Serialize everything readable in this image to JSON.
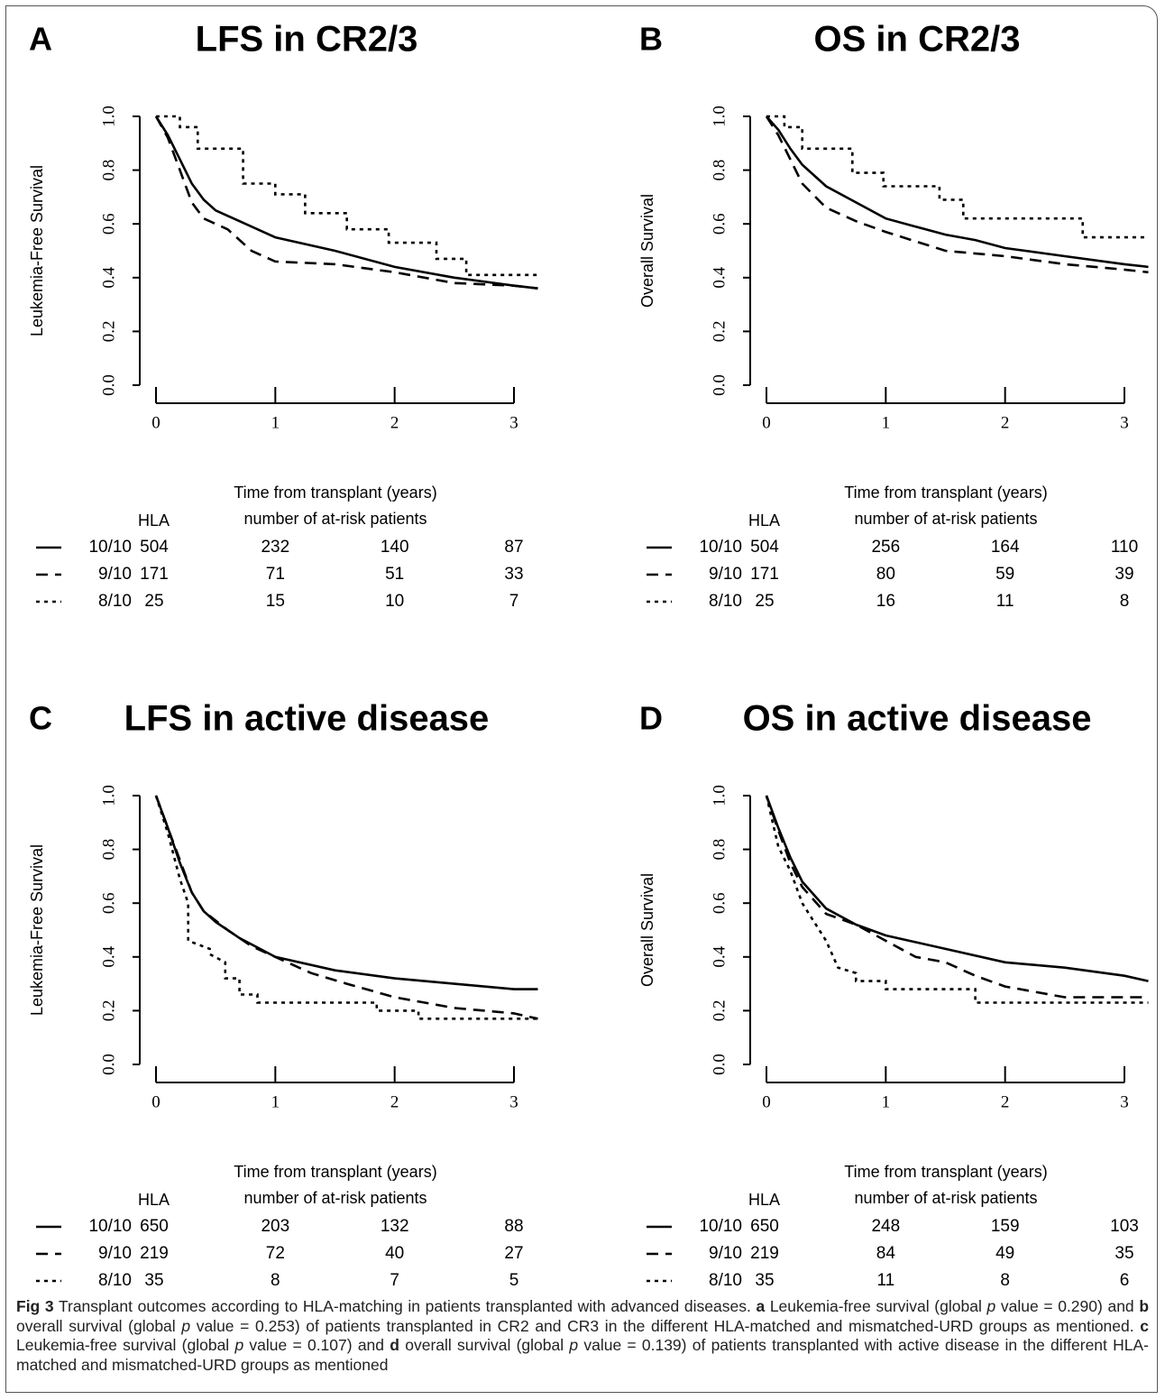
{
  "chart_data": [
    {
      "type": "line",
      "panel": "A",
      "title": "LFS in CR2/3",
      "ylabel": "Leukemia-Free Survival",
      "xlabel": "Time from transplant (years)",
      "table_header": "HLA",
      "table_title": "number of at-risk patients",
      "xlim": [
        0,
        3.2
      ],
      "ylim": [
        0,
        1
      ],
      "xticks": [
        0,
        1,
        2,
        3
      ],
      "yticks": [
        {
          "value": 0,
          "label": "0.0"
        },
        0.2,
        0.4,
        0.6,
        0.8,
        {
          "value": 1,
          "label": "1.0"
        }
      ],
      "series": [
        {
          "name": "10/10",
          "color": "#000000",
          "linestyle": "solid",
          "x": [
            0,
            0.1,
            0.2,
            0.3,
            0.4,
            0.5,
            0.75,
            1.0,
            1.5,
            2.0,
            2.5,
            3.0,
            3.2
          ],
          "values": [
            1,
            0.93,
            0.84,
            0.75,
            0.69,
            0.65,
            0.6,
            0.55,
            0.5,
            0.44,
            0.4,
            0.37,
            0.36
          ],
          "at_risk": [
            504,
            232,
            140,
            87
          ]
        },
        {
          "name": "9/10",
          "color": "#000000",
          "linestyle": "dashed",
          "x": [
            0,
            0.1,
            0.2,
            0.3,
            0.4,
            0.6,
            0.8,
            1.0,
            1.5,
            2.0,
            2.5,
            3.0,
            3.2
          ],
          "values": [
            1,
            0.92,
            0.8,
            0.68,
            0.62,
            0.58,
            0.5,
            0.46,
            0.45,
            0.42,
            0.38,
            0.37,
            0.36
          ],
          "at_risk": [
            171,
            71,
            51,
            33
          ]
        },
        {
          "name": "8/10",
          "color": "#000000",
          "linestyle": "dotted",
          "x": [
            0,
            0.2,
            0.2,
            0.35,
            0.35,
            0.73,
            0.73,
            1.0,
            1.0,
            1.25,
            1.25,
            1.6,
            1.6,
            1.95,
            1.95,
            2.35,
            2.35,
            2.6,
            2.6,
            3.2
          ],
          "values": [
            1,
            1,
            0.96,
            0.96,
            0.88,
            0.88,
            0.75,
            0.75,
            0.71,
            0.71,
            0.64,
            0.64,
            0.58,
            0.58,
            0.53,
            0.53,
            0.47,
            0.47,
            0.41,
            0.41
          ],
          "at_risk": [
            25,
            15,
            10,
            7
          ]
        }
      ]
    },
    {
      "type": "line",
      "panel": "B",
      "title": "OS in CR2/3",
      "ylabel": "Overall Survival",
      "xlabel": "Time from transplant (years)",
      "table_header": "HLA",
      "table_title": "number of at-risk patients",
      "xlim": [
        0,
        3.2
      ],
      "ylim": [
        0,
        1
      ],
      "xticks": [
        0,
        1,
        2,
        3
      ],
      "yticks": [
        {
          "value": 0,
          "label": "0.0"
        },
        0.2,
        0.4,
        0.6,
        0.8,
        {
          "value": 1,
          "label": "1.0"
        }
      ],
      "series": [
        {
          "name": "10/10",
          "color": "#000000",
          "linestyle": "solid",
          "x": [
            0,
            0.1,
            0.2,
            0.3,
            0.5,
            0.75,
            1.0,
            1.25,
            1.5,
            1.75,
            2.0,
            2.5,
            3.0,
            3.2
          ],
          "values": [
            1,
            0.95,
            0.88,
            0.82,
            0.74,
            0.68,
            0.62,
            0.59,
            0.56,
            0.54,
            0.51,
            0.48,
            0.45,
            0.44
          ],
          "at_risk": [
            504,
            256,
            164,
            110
          ]
        },
        {
          "name": "9/10",
          "color": "#000000",
          "linestyle": "dashed",
          "x": [
            0,
            0.1,
            0.2,
            0.3,
            0.5,
            0.75,
            1.0,
            1.5,
            2.0,
            2.5,
            3.0,
            3.2
          ],
          "values": [
            1,
            0.93,
            0.84,
            0.75,
            0.66,
            0.61,
            0.57,
            0.5,
            0.48,
            0.45,
            0.43,
            0.42
          ],
          "at_risk": [
            171,
            80,
            59,
            39
          ]
        },
        {
          "name": "8/10",
          "color": "#000000",
          "linestyle": "dotted",
          "x": [
            0,
            0.15,
            0.15,
            0.3,
            0.3,
            0.72,
            0.72,
            0.98,
            0.98,
            1.45,
            1.45,
            1.65,
            1.65,
            2.65,
            2.65,
            3.2
          ],
          "values": [
            1,
            1,
            0.96,
            0.96,
            0.88,
            0.88,
            0.79,
            0.79,
            0.74,
            0.74,
            0.69,
            0.69,
            0.62,
            0.62,
            0.55,
            0.55
          ],
          "at_risk": [
            25,
            16,
            11,
            8
          ]
        }
      ]
    },
    {
      "type": "line",
      "panel": "C",
      "title": "LFS in active disease",
      "ylabel": "Leukemia-Free Survival",
      "xlabel": "Time from transplant (years)",
      "table_header": "HLA",
      "table_title": "number of at-risk patients",
      "xlim": [
        0,
        3.2
      ],
      "ylim": [
        0,
        1
      ],
      "xticks": [
        0,
        1,
        2,
        3
      ],
      "yticks": [
        {
          "value": 0,
          "label": "0.0"
        },
        0.2,
        0.4,
        0.6,
        0.8,
        {
          "value": 1,
          "label": "1.0"
        }
      ],
      "series": [
        {
          "name": "10/10",
          "color": "#000000",
          "linestyle": "solid",
          "x": [
            0,
            0.1,
            0.2,
            0.3,
            0.4,
            0.5,
            0.7,
            1.0,
            1.5,
            2.0,
            2.5,
            3.0,
            3.2
          ],
          "values": [
            1,
            0.88,
            0.75,
            0.64,
            0.57,
            0.53,
            0.47,
            0.4,
            0.35,
            0.32,
            0.3,
            0.28,
            0.28
          ],
          "at_risk": [
            650,
            203,
            132,
            88
          ]
        },
        {
          "name": "9/10",
          "color": "#000000",
          "linestyle": "dashed",
          "x": [
            0,
            0.1,
            0.2,
            0.3,
            0.4,
            0.6,
            0.8,
            1.0,
            1.3,
            1.6,
            2.0,
            2.5,
            3.0,
            3.2
          ],
          "values": [
            1,
            0.88,
            0.76,
            0.64,
            0.57,
            0.5,
            0.44,
            0.4,
            0.34,
            0.3,
            0.25,
            0.21,
            0.19,
            0.17
          ],
          "at_risk": [
            219,
            72,
            40,
            27
          ]
        },
        {
          "name": "8/10",
          "color": "#000000",
          "linestyle": "dotted",
          "x": [
            0,
            0.1,
            0.2,
            0.27,
            0.27,
            0.45,
            0.45,
            0.58,
            0.58,
            0.7,
            0.7,
            0.85,
            0.85,
            1.85,
            1.85,
            2.2,
            2.2,
            3.2
          ],
          "values": [
            1,
            0.86,
            0.69,
            0.6,
            0.46,
            0.43,
            0.41,
            0.38,
            0.32,
            0.32,
            0.26,
            0.26,
            0.23,
            0.23,
            0.2,
            0.2,
            0.17,
            0.17
          ],
          "at_risk": [
            35,
            8,
            7,
            5
          ]
        }
      ]
    },
    {
      "type": "line",
      "panel": "D",
      "title": "OS in active disease",
      "ylabel": "Overall Survival",
      "xlabel": "Time from transplant (years)",
      "table_header": "HLA",
      "table_title": "number of at-risk patients",
      "xlim": [
        0,
        3.2
      ],
      "ylim": [
        0,
        1
      ],
      "xticks": [
        0,
        1,
        2,
        3
      ],
      "yticks": [
        {
          "value": 0,
          "label": "0.0"
        },
        0.2,
        0.4,
        0.6,
        0.8,
        {
          "value": 1,
          "label": "1.0"
        }
      ],
      "series": [
        {
          "name": "10/10",
          "color": "#000000",
          "linestyle": "solid",
          "x": [
            0,
            0.1,
            0.2,
            0.3,
            0.5,
            0.75,
            1.0,
            1.5,
            2.0,
            2.5,
            3.0,
            3.2
          ],
          "values": [
            1,
            0.88,
            0.77,
            0.68,
            0.58,
            0.52,
            0.48,
            0.43,
            0.38,
            0.36,
            0.33,
            0.31
          ],
          "at_risk": [
            650,
            248,
            159,
            103
          ]
        },
        {
          "name": "9/10",
          "color": "#000000",
          "linestyle": "dashed",
          "x": [
            0,
            0.1,
            0.2,
            0.3,
            0.5,
            0.75,
            1.0,
            1.25,
            1.5,
            1.75,
            2.0,
            2.5,
            3.2
          ],
          "values": [
            1,
            0.87,
            0.75,
            0.66,
            0.56,
            0.52,
            0.46,
            0.4,
            0.38,
            0.33,
            0.29,
            0.25,
            0.25
          ],
          "at_risk": [
            219,
            84,
            49,
            35
          ]
        },
        {
          "name": "8/10",
          "color": "#000000",
          "linestyle": "dotted",
          "x": [
            0,
            0.1,
            0.2,
            0.3,
            0.4,
            0.5,
            0.6,
            0.75,
            0.75,
            1.0,
            1.0,
            1.75,
            1.75,
            3.2
          ],
          "values": [
            1,
            0.81,
            0.72,
            0.6,
            0.53,
            0.46,
            0.36,
            0.34,
            0.31,
            0.31,
            0.28,
            0.28,
            0.23,
            0.23
          ],
          "at_risk": [
            35,
            11,
            8,
            6
          ]
        }
      ]
    }
  ],
  "caption": [
    {
      "text": "Fig 3",
      "style": "bold"
    },
    {
      "text": " Transplant outcomes according to HLA-matching in patients transplanted with advanced diseases. "
    },
    {
      "text": "a",
      "style": "bold"
    },
    {
      "text": " Leukemia-free survival (global "
    },
    {
      "text": "p",
      "style": "italic"
    },
    {
      "text": " value = 0.290) and "
    },
    {
      "text": "b",
      "style": "bold"
    },
    {
      "text": " overall survival (global "
    },
    {
      "text": "p",
      "style": "italic"
    },
    {
      "text": " value = 0.253) of patients transplanted in CR2 and CR3 in the different HLA-matched and mismatched-URD groups as mentioned. "
    },
    {
      "text": "c",
      "style": "bold"
    },
    {
      "text": " Leukemia-free survival (global "
    },
    {
      "text": "p",
      "style": "italic"
    },
    {
      "text": " value = 0.107) and "
    },
    {
      "text": "d",
      "style": "bold"
    },
    {
      "text": " overall survival (global "
    },
    {
      "text": "p",
      "style": "italic"
    },
    {
      "text": " value = 0.139) of patients transplanted with active disease in the different HLA-matched and mismatched-URD groups as mentioned"
    }
  ]
}
